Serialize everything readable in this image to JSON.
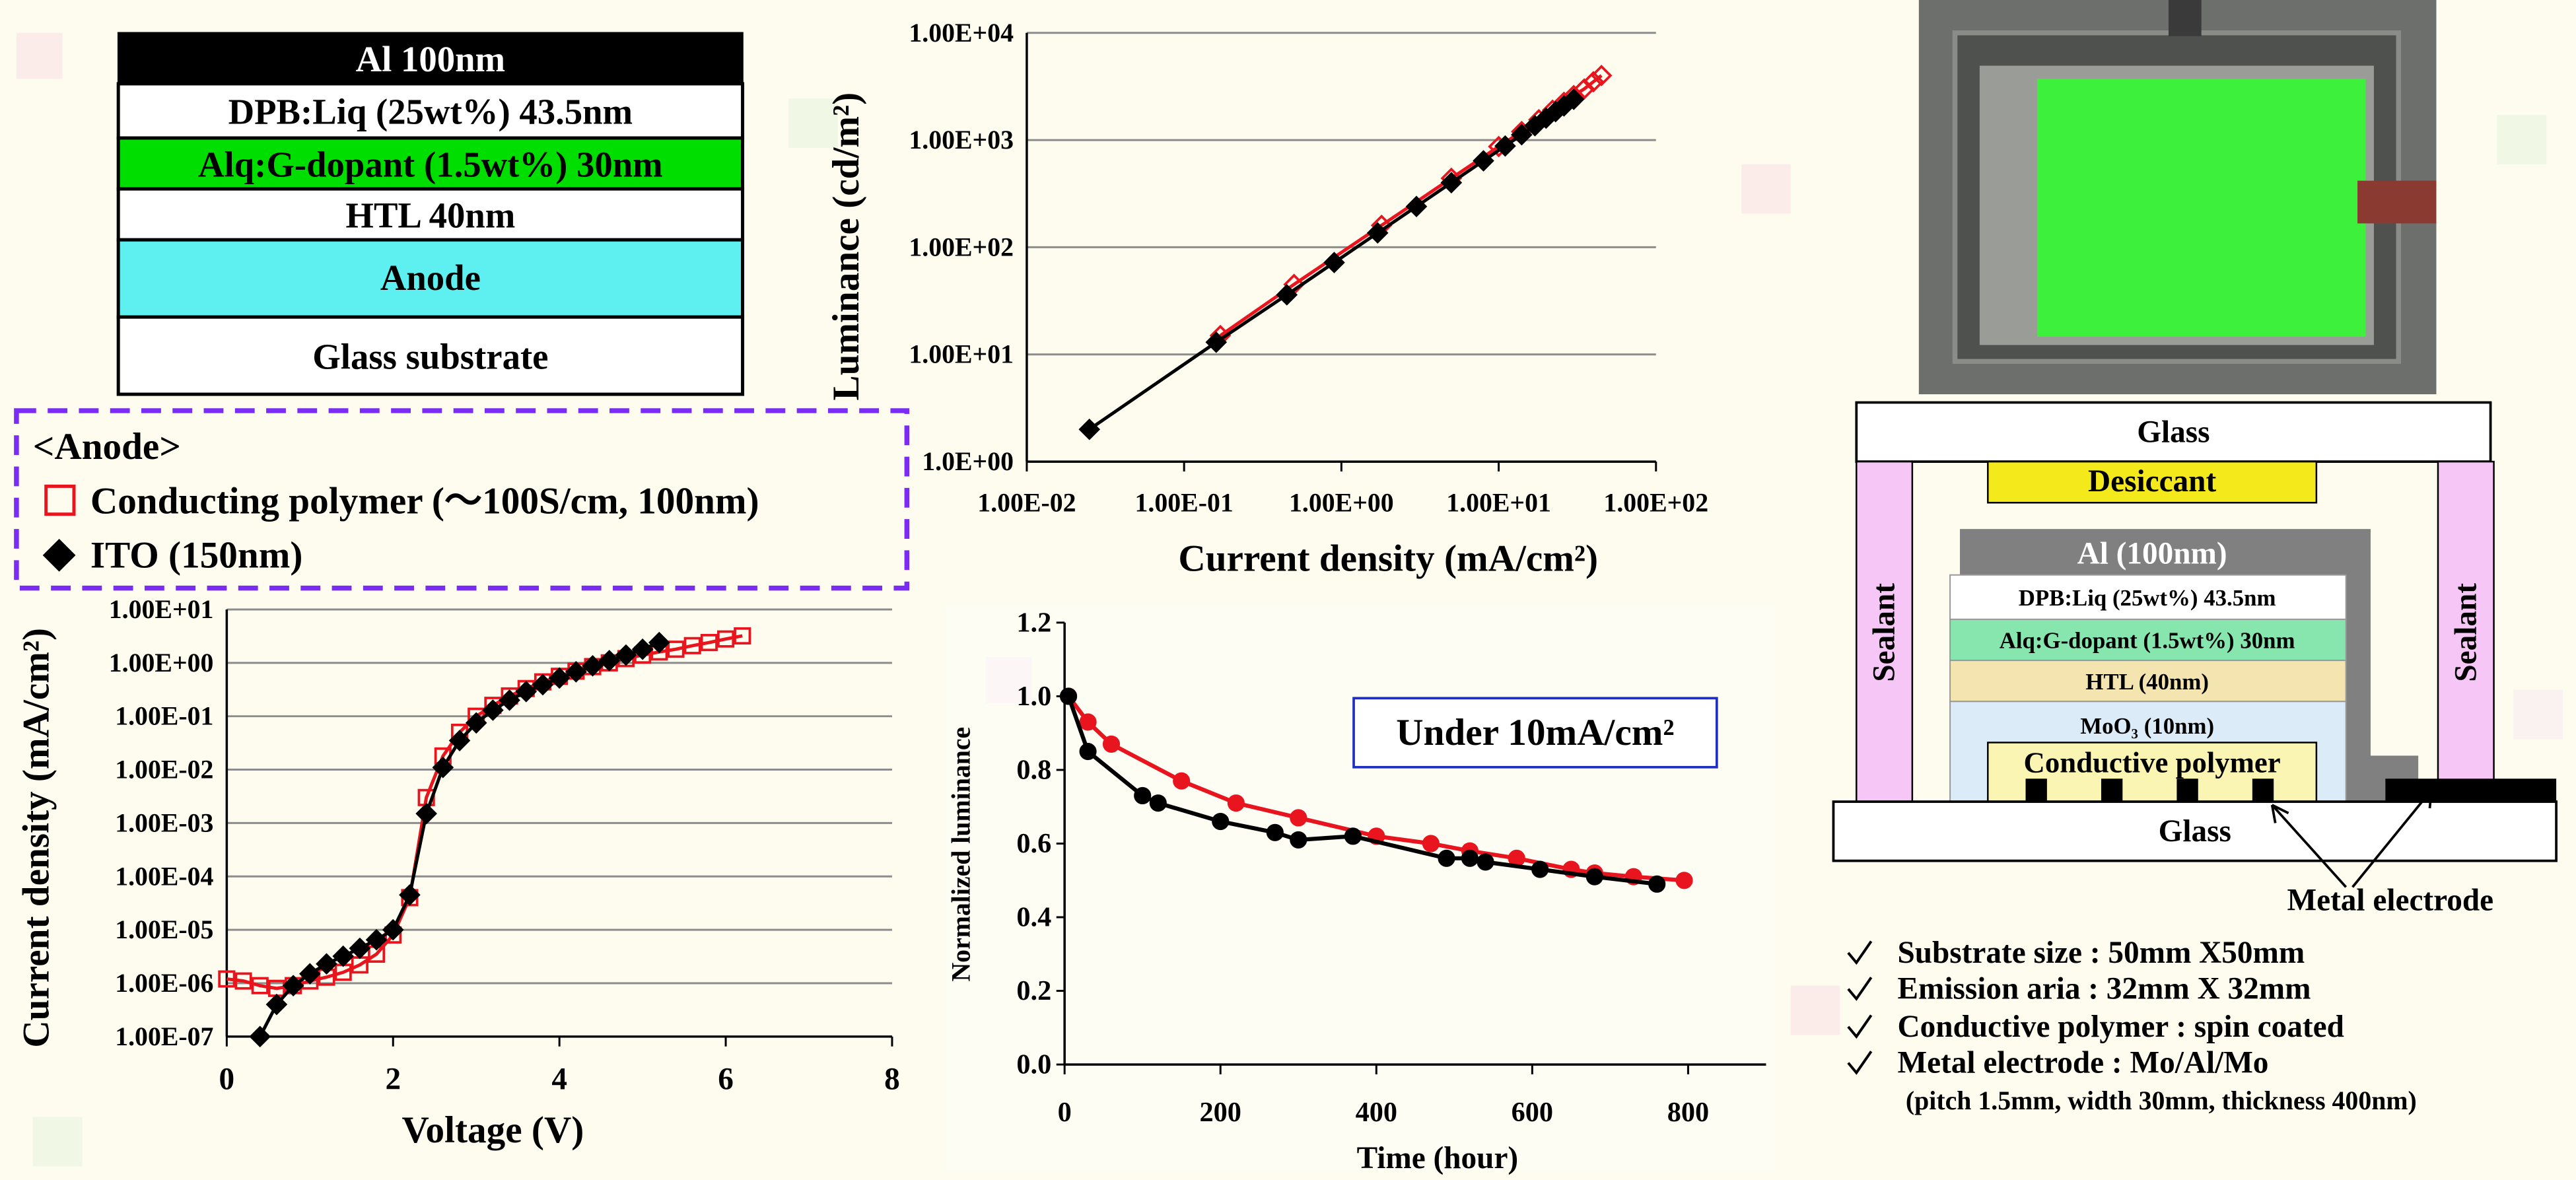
{
  "chart_data": [
    {
      "type": "line",
      "xlabel": "Voltage (V)",
      "ylabel": "Current density (mA/cm²)",
      "xlim": [
        0,
        8
      ],
      "xticks": [
        0,
        2,
        4,
        6,
        8
      ],
      "ylim": [
        1e-07,
        10
      ],
      "yscale": "log",
      "grid": true,
      "yticks": [
        {
          "value": 10,
          "label": "1.00E+01"
        },
        {
          "value": 1,
          "label": "1.00E+00"
        },
        {
          "value": 0.1,
          "label": "1.00E-01"
        },
        {
          "value": 0.01,
          "label": "1.00E-02"
        },
        {
          "value": 0.001,
          "label": "1.00E-03"
        },
        {
          "value": 0.0001,
          "label": "1.00E-04"
        },
        {
          "value": 1e-05,
          "label": "1.00E-05"
        },
        {
          "value": 1e-06,
          "label": "1.00E-06"
        },
        {
          "value": 1e-07,
          "label": "1.00E-07"
        }
      ],
      "series": [
        {
          "color": "#e8141e",
          "marker": "square",
          "filled": false,
          "x": [
            0,
            0.2,
            0.4,
            0.6,
            0.8,
            1.0,
            1.2,
            1.4,
            1.6,
            1.8,
            2.0,
            2.2,
            2.4,
            2.6,
            2.8,
            3.0,
            3.2,
            3.4,
            3.6,
            3.8,
            4.0,
            4.2,
            4.4,
            4.6,
            4.8,
            5.0,
            5.2,
            5.4,
            5.6,
            5.8,
            6.0,
            6.2
          ],
          "values": [
            1.2e-06,
            1.1e-06,
            9e-07,
            8e-07,
            9e-07,
            1.1e-06,
            1.3e-06,
            1.6e-06,
            2.2e-06,
            3.5e-06,
            8e-06,
            4e-05,
            0.003,
            0.018,
            0.05,
            0.1,
            0.16,
            0.24,
            0.33,
            0.44,
            0.56,
            0.7,
            0.85,
            1.0,
            1.2,
            1.4,
            1.6,
            1.8,
            2.1,
            2.4,
            2.8,
            3.2
          ]
        },
        {
          "color": "#000000",
          "marker": "diamond",
          "filled": true,
          "x": [
            0.4,
            0.6,
            0.8,
            1.0,
            1.2,
            1.4,
            1.6,
            1.8,
            2.0,
            2.2,
            2.4,
            2.6,
            2.8,
            3.0,
            3.2,
            3.4,
            3.6,
            3.8,
            4.0,
            4.2,
            4.4,
            4.6,
            4.8,
            5.0,
            5.2
          ],
          "values": [
            1e-07,
            4e-07,
            9e-07,
            1.5e-06,
            2.3e-06,
            3.2e-06,
            4.5e-06,
            6.5e-06,
            1e-05,
            4.5e-05,
            0.0015,
            0.011,
            0.035,
            0.075,
            0.13,
            0.2,
            0.29,
            0.39,
            0.52,
            0.68,
            0.88,
            1.1,
            1.4,
            1.8,
            2.4
          ]
        }
      ]
    },
    {
      "type": "line",
      "xlabel": "Current density (mA/cm²)",
      "ylabel": "Luminance (cd/m²)",
      "xlim": [
        0.01,
        100
      ],
      "xscale": "log",
      "ylim": [
        1,
        10000
      ],
      "yscale": "log",
      "grid": true,
      "xticks": [
        {
          "value": 0.01,
          "label": "1.00E-02"
        },
        {
          "value": 0.1,
          "label": "1.00E-01"
        },
        {
          "value": 1,
          "label": "1.00E+00"
        },
        {
          "value": 10,
          "label": "1.00E+01"
        },
        {
          "value": 100,
          "label": "1.00E+02"
        }
      ],
      "yticks": [
        {
          "value": 1,
          "label": "1.0E+00"
        },
        {
          "value": 10,
          "label": "1.00E+01"
        },
        {
          "value": 100,
          "label": "1.00E+02"
        },
        {
          "value": 1000,
          "label": "1.00E+03"
        },
        {
          "value": 10000,
          "label": "1.00E+04"
        }
      ],
      "series": [
        {
          "color": "#e8141e",
          "marker": "diamond",
          "filled": false,
          "x": [
            0.17,
            0.5,
            1.8,
            5,
            10,
            14,
            18,
            22,
            26,
            30,
            35,
            40,
            45
          ],
          "values": [
            15,
            45,
            160,
            440,
            870,
            1200,
            1550,
            1900,
            2250,
            2600,
            3000,
            3500,
            4000
          ]
        },
        {
          "color": "#000000",
          "marker": "diamond",
          "filled": true,
          "x": [
            0.025,
            0.16,
            0.45,
            0.9,
            1.7,
            3,
            5,
            8,
            11,
            14,
            17,
            20,
            23,
            26,
            30
          ],
          "values": [
            2,
            13,
            36,
            72,
            136,
            240,
            400,
            640,
            880,
            1120,
            1360,
            1600,
            1840,
            2080,
            2400
          ]
        }
      ]
    },
    {
      "type": "line",
      "xlabel": "Time (hour)",
      "ylabel": "Normalized luminance",
      "xlim": [
        0,
        900
      ],
      "xticks": [
        0,
        200,
        400,
        600,
        800
      ],
      "ylim": [
        0,
        1.2
      ],
      "grid": false,
      "yticks": [
        {
          "value": 0,
          "label": "0.0"
        },
        0.2,
        0.4,
        0.6,
        0.8,
        {
          "value": 1,
          "label": "1.0"
        },
        1.2
      ],
      "annotation": "Under 10mA/cm²",
      "series": [
        {
          "color": "#e8141e",
          "marker": "circle",
          "filled": true,
          "x": [
            5,
            30,
            60,
            150,
            220,
            300,
            400,
            470,
            520,
            580,
            650,
            680,
            730,
            795
          ],
          "values": [
            1.0,
            0.93,
            0.87,
            0.77,
            0.71,
            0.67,
            0.62,
            0.6,
            0.58,
            0.56,
            0.53,
            0.52,
            0.51,
            0.5
          ]
        },
        {
          "color": "#000000",
          "marker": "circle",
          "filled": true,
          "x": [
            5,
            30,
            100,
            120,
            200,
            270,
            300,
            370,
            490,
            520,
            540,
            610,
            680,
            760
          ],
          "values": [
            1.0,
            0.85,
            0.73,
            0.71,
            0.66,
            0.63,
            0.61,
            0.62,
            0.56,
            0.56,
            0.55,
            0.53,
            0.51,
            0.49
          ]
        }
      ]
    }
  ],
  "stack": {
    "layers": [
      "Al 100nm",
      "DPB:Liq (25wt%) 43.5nm",
      "Alq:G-dopant (1.5wt%) 30nm",
      "HTL 40nm",
      "Anode",
      "Glass substrate"
    ]
  },
  "legend": {
    "title": "<Anode>",
    "items": [
      "Conducting polymer (～100S/cm, 100nm)",
      "ITO (150nm)"
    ]
  },
  "device": {
    "glass_top": "Glass",
    "desiccant": "Desiccant",
    "sealant_left": "Sealant",
    "sealant_right": "Sealant",
    "al": "Al (100nm)",
    "layers": [
      "DPB:Liq (25wt%) 43.5nm",
      "Alq:G-dopant (1.5wt%) 30nm",
      "HTL (40nm)",
      "MoO₃ (10nm)"
    ],
    "conductive_polymer": "Conductive polymer",
    "glass_bottom": "Glass",
    "metal_electrode": "Metal electrode"
  },
  "specs": {
    "items": [
      "Substrate size : 50mm X50mm",
      "Emission aria : 32mm X 32mm",
      "Conductive polymer : spin coated",
      "Metal electrode : Mo/Al/Mo"
    ],
    "note": "(pitch 1.5mm, width 30mm, thickness 400nm)"
  }
}
